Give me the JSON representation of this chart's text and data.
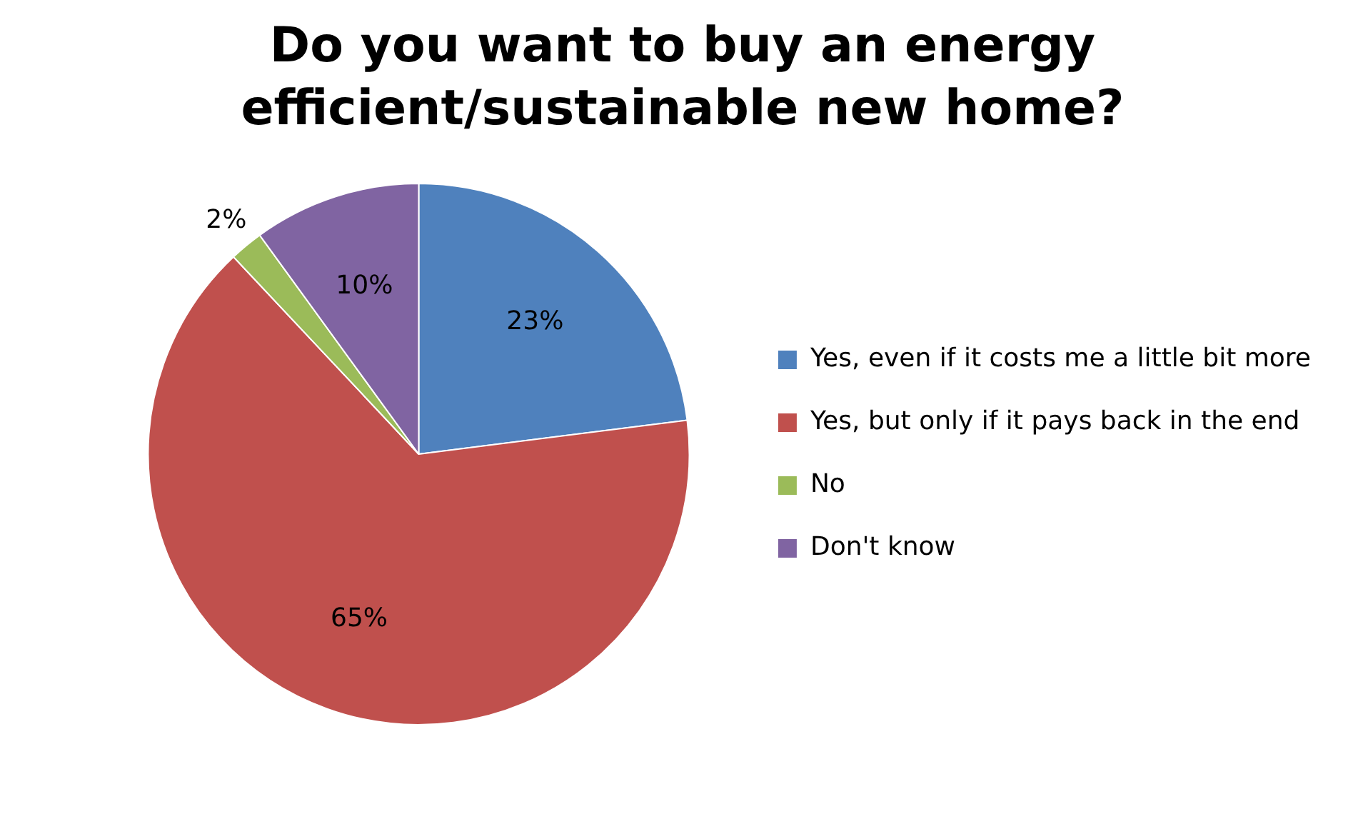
{
  "chart_data": {
    "type": "pie",
    "title": "Do you want to buy an energy efficient/sustainable new home?",
    "categories": [
      "Yes, even if it costs me a little bit more",
      "Yes, but only if it pays back in the end",
      "No",
      "Don't know"
    ],
    "values": [
      23,
      65,
      2,
      10
    ],
    "colors": [
      "#4f81bd",
      "#c0504d",
      "#9bbb59",
      "#8064a2"
    ],
    "value_labels": [
      "23%",
      "65%",
      "2%",
      "10%"
    ],
    "legend": "right"
  }
}
